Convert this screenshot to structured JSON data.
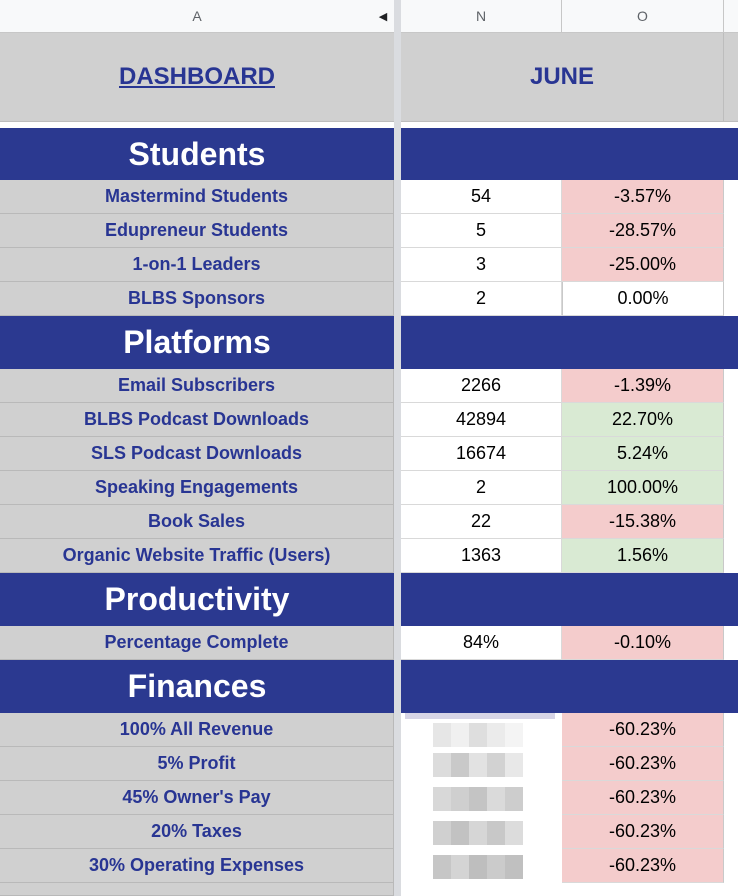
{
  "columns": {
    "a": "A",
    "n": "N",
    "o": "O"
  },
  "header": {
    "dashboard": "DASHBOARD",
    "month": "JUNE"
  },
  "sections": [
    {
      "title": "Students",
      "rows": [
        {
          "label": "Mastermind Students",
          "value": "54",
          "change": "-3.57%",
          "status": "red"
        },
        {
          "label": "Edupreneur Students",
          "value": "5",
          "change": "-28.57%",
          "status": "red"
        },
        {
          "label": "1-on-1 Leaders",
          "value": "3",
          "change": "-25.00%",
          "status": "red"
        },
        {
          "label": "BLBS Sponsors",
          "value": "2",
          "change": "0.00%",
          "status": "white"
        }
      ]
    },
    {
      "title": "Platforms",
      "rows": [
        {
          "label": "Email Subscribers",
          "value": "2266",
          "change": "-1.39%",
          "status": "red"
        },
        {
          "label": "BLBS Podcast Downloads",
          "value": "42894",
          "change": "22.70%",
          "status": "green"
        },
        {
          "label": "SLS Podcast Downloads",
          "value": "16674",
          "change": "5.24%",
          "status": "green"
        },
        {
          "label": "Speaking Engagements",
          "value": "2",
          "change": "100.00%",
          "status": "green"
        },
        {
          "label": "Book Sales",
          "value": "22",
          "change": "-15.38%",
          "status": "red"
        },
        {
          "label": "Organic Website Traffic (Users)",
          "value": "1363",
          "change": "1.56%",
          "status": "green"
        }
      ]
    },
    {
      "title": "Productivity",
      "rows": [
        {
          "label": "Percentage Complete",
          "value": "84%",
          "change": "-0.10%",
          "status": "red"
        }
      ]
    },
    {
      "title": "Finances",
      "rows": [
        {
          "label": "100% All Revenue",
          "value": "",
          "change": "-60.23%",
          "status": "red"
        },
        {
          "label": "5% Profit",
          "value": "",
          "change": "-60.23%",
          "status": "red"
        },
        {
          "label": "45% Owner's Pay",
          "value": "",
          "change": "-60.23%",
          "status": "red"
        },
        {
          "label": "20% Taxes",
          "value": "",
          "change": "-60.23%",
          "status": "red"
        },
        {
          "label": "30% Operating Expenses",
          "value": "",
          "change": "-60.23%",
          "status": "red"
        }
      ]
    }
  ],
  "colors": {
    "navy": "#2b3990",
    "label_text": "#283593",
    "red_fill": "#f4cccc",
    "green_fill": "#d9ead3",
    "gray": "#d0d0d0"
  }
}
